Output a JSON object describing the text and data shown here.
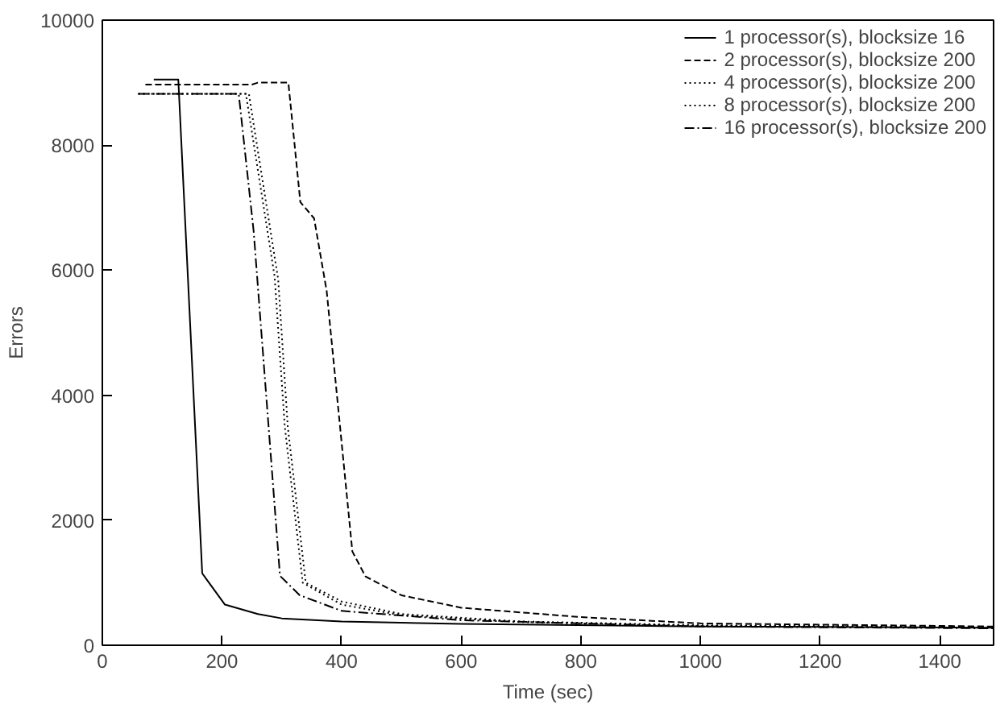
{
  "chart_data": {
    "type": "line",
    "xlabel": "Time (sec)",
    "ylabel": "Errors",
    "xlim": [
      0,
      1490
    ],
    "ylim": [
      0,
      10000
    ],
    "xticks": [
      0,
      200,
      400,
      600,
      800,
      1000,
      1200,
      1400
    ],
    "yticks": [
      0,
      2000,
      4000,
      6000,
      8000,
      10000
    ],
    "grid": false,
    "legend": "top right",
    "marker": "none",
    "series": [
      {
        "name": "1 processor(s), blocksize 16",
        "color": "#000000",
        "line_style": "solid",
        "x": [
          86,
          127,
          167,
          205,
          260,
          300,
          400,
          600,
          1000,
          1490
        ],
        "values": [
          9050,
          9050,
          1150,
          650,
          500,
          430,
          380,
          340,
          300,
          280
        ]
      },
      {
        "name": "2 processor(s), blocksize 200",
        "color": "#000000",
        "line_style": "dashed",
        "x": [
          72,
          250,
          260,
          311,
          331,
          354,
          375,
          418,
          440,
          500,
          600,
          800,
          1000,
          1490
        ],
        "values": [
          8970,
          8970,
          9000,
          9000,
          7090,
          6830,
          5670,
          1500,
          1100,
          800,
          600,
          450,
          350,
          300
        ]
      },
      {
        "name": "4 processor(s), blocksize 200",
        "color": "#000000",
        "line_style": "dotted",
        "x": [
          60,
          245,
          294,
          310,
          340,
          400,
          500,
          700,
          1000,
          1490
        ],
        "values": [
          8820,
          8820,
          5850,
          3500,
          1000,
          700,
          500,
          380,
          320,
          290
        ]
      },
      {
        "name": "8 processor(s), blocksize 200",
        "color": "#000000",
        "line_style": "dotted",
        "x": [
          60,
          240,
          288,
          305,
          335,
          400,
          500,
          700,
          1000,
          1490
        ],
        "values": [
          8820,
          8820,
          5900,
          3500,
          1000,
          650,
          480,
          370,
          310,
          280
        ]
      },
      {
        "name": "16 processor(s), blocksize 200",
        "color": "#000000",
        "line_style": "dashdot",
        "x": [
          60,
          228,
          253,
          297,
          330,
          400,
          600,
          1000,
          1490
        ],
        "values": [
          8820,
          8820,
          6620,
          1110,
          800,
          550,
          400,
          300,
          270
        ]
      }
    ]
  }
}
